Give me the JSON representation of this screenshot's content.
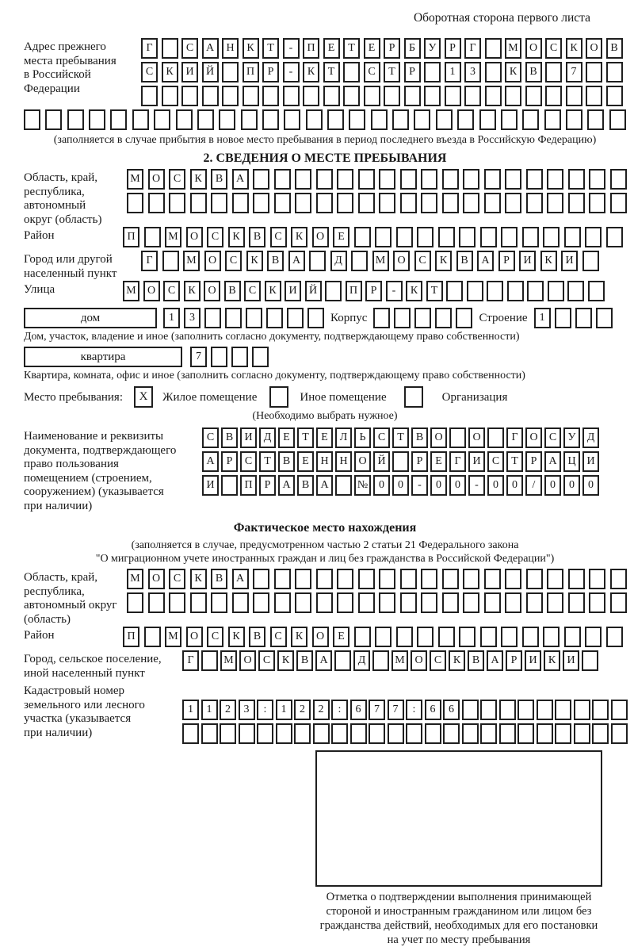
{
  "page": {
    "header_note": "Оборотная сторона первого листа",
    "section2_title": "2. СВЕДЕНИЯ О МЕСТЕ ПРЕБЫВАНИЯ",
    "fact_title": "Фактическое место нахождения"
  },
  "prev_address": {
    "label": "Адрес прежнего\nместа пребывания\nв Российской\nФедерации",
    "row1": {
      "n": 24,
      "text": "Г САНКТ-ПЕТЕРБУРГ МОСКОВ"
    },
    "row2": {
      "n": 24,
      "text": "СКИЙ ПР-КТ СТР 13 КВ 7"
    },
    "row3": {
      "n": 24,
      "text": ""
    },
    "row4": {
      "n": 28,
      "text": ""
    },
    "note": "(заполняется в случае прибытия в новое место пребывания в период последнего въезда в Российскую Федерацию)"
  },
  "stay": {
    "oblast_label": "Область, край,\nреспублика,\nавтономный\nокруг (область)",
    "oblast_row1": {
      "n": 24,
      "text": "МОСКВА"
    },
    "oblast_row2": {
      "n": 24,
      "text": ""
    },
    "raion_label": "Район",
    "raion_row": {
      "n": 24,
      "text": "П МОСКВСКОЕ"
    },
    "city_label": "Город или другой\nнаселенный пункт",
    "city_row": {
      "n": 22,
      "text": "Г МОСКВА Д МОСКВАРИКИ"
    },
    "street_label": "Улица",
    "street_row": {
      "n": 24,
      "text": "МОСКОВСКИЙ ПР-КТ"
    },
    "dom_label": "дом",
    "dom_row": {
      "n": 8,
      "text": "13"
    },
    "korpus_label": "Корпус",
    "korpus_row": {
      "n": 5,
      "text": ""
    },
    "stroenie_label": "Строение",
    "stroenie_row": {
      "n": 4,
      "text": "1"
    },
    "dom_note": "Дом, участок, владение и иное (заполнить согласно документу, подтверждающему право собственности)",
    "kv_label": "квартира",
    "kv_row": {
      "n": 4,
      "text": "7"
    },
    "kv_note": "Квартира, комната, офис и иное (заполнить согласно документу, подтверждающему право собственности)",
    "place_label": "Место пребывания:",
    "place_box": {
      "n": 1,
      "text": "X"
    },
    "opt1": "Жилое помещение",
    "opt1_box": {
      "n": 1,
      "text": ""
    },
    "opt2": "Иное помещение",
    "opt2_box": {
      "n": 1,
      "text": ""
    },
    "opt3": "Организация",
    "choose_note": "(Необходимо выбрать нужное)",
    "doc_label": "Наименование и реквизиты\nдокумента, подтверждающего\nправо пользования\nпомещением (строением,\nсооружением) (указывается\nпри наличии)",
    "doc_row1": {
      "n": 21,
      "text": "СВИДЕТЕЛЬСТВО О ГОСУД"
    },
    "doc_row2": {
      "n": 21,
      "text": "АРСТВЕННОЙ РЕГИСТРАЦИ"
    },
    "doc_row3": {
      "n": 21,
      "text": "И ПРАВА №00-00-00/000"
    }
  },
  "actual": {
    "note1": "(заполняется в случае, предусмотренном частью 2 статьи 21 Федерального закона",
    "note2": "\"О миграционном учете иностранных граждан и лиц без гражданства в Российской Федерации\")",
    "oblast_label": "Область, край,\nреспублика,\nавтономный округ\n(область)",
    "oblast_row1": {
      "n": 24,
      "text": "МОСКВА"
    },
    "oblast_row2": {
      "n": 24,
      "text": ""
    },
    "raion_label": "Район",
    "raion_row": {
      "n": 24,
      "text": "П МОСКВСКОЕ"
    },
    "city_label": "Город, сельское поселение,\nиной населенный пункт",
    "city_row": {
      "n": 22,
      "text": "Г МОСКВА Д МОСКВАРИКИ"
    },
    "kadastr_label": "Кадастровый номер\nземельного или лесного\nучастка (указывается\nпри наличии)",
    "kadastr_row1": {
      "n": 24,
      "text": "1123:122:677:66"
    },
    "kadastr_row2": {
      "n": 24,
      "text": ""
    },
    "stamp_note": "Отметка о подтверждении выполнения принимающей\nстороной и иностранным гражданином или лицом без\nгражданства действий, необходимых для его постановки\nна учет по месту пребывания"
  }
}
